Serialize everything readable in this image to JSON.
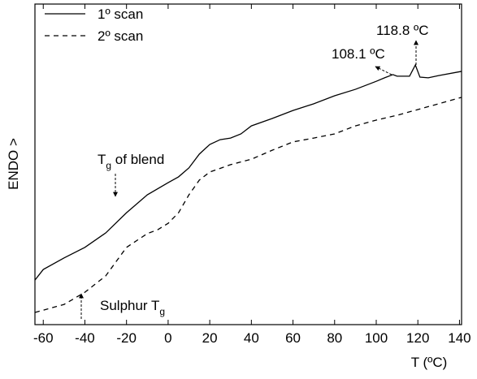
{
  "chart_data": {
    "type": "line",
    "x_label": "T (ºC)",
    "y_label": "ENDO >",
    "xlim": [
      -64,
      141
    ],
    "ylim": [
      0,
      100
    ],
    "xticks": [
      -60,
      -40,
      -20,
      0,
      20,
      40,
      60,
      80,
      100,
      120,
      140
    ],
    "series": [
      {
        "name": "1º scan",
        "color": "#000000",
        "dash": "solid",
        "x": [
          -64,
          -60,
          -50,
          -40,
          -30,
          -20,
          -10,
          0,
          5,
          10,
          15,
          20,
          25,
          30,
          35,
          40,
          50,
          60,
          70,
          80,
          90,
          100,
          104,
          108,
          110,
          116,
          118.8,
          121,
          125,
          130,
          141
        ],
        "values": [
          13.9,
          17.2,
          20.8,
          24.1,
          28.6,
          34.9,
          40.5,
          44.3,
          46.1,
          48.9,
          53.2,
          56.2,
          57.7,
          58.2,
          59.5,
          62.0,
          64.3,
          66.8,
          68.9,
          71.4,
          73.4,
          75.9,
          77.0,
          78.0,
          77.5,
          77.5,
          81.0,
          77.2,
          77.0,
          77.7,
          79.0
        ]
      },
      {
        "name": "2º scan",
        "color": "#000000",
        "dash": "dashed",
        "x": [
          -64,
          -50,
          -40,
          -30,
          -20,
          -10,
          -5,
          0,
          5,
          10,
          15,
          20,
          30,
          40,
          50,
          60,
          70,
          80,
          90,
          100,
          110,
          120,
          130,
          141
        ],
        "values": [
          3.8,
          6.3,
          10.1,
          15.2,
          24.1,
          28.4,
          29.6,
          31.6,
          34.9,
          40.5,
          45.1,
          47.6,
          49.9,
          51.6,
          54.4,
          57.0,
          58.2,
          59.5,
          62.0,
          63.8,
          65.3,
          67.1,
          68.9,
          70.9
        ]
      }
    ],
    "annotations": [
      {
        "text": "118.8 ºC"
      },
      {
        "text": "108.1 ºC"
      },
      {
        "text": "T",
        "sub": "g",
        "rest": " of blend"
      },
      {
        "text": "Sulphur T",
        "sub": "g"
      }
    ]
  }
}
